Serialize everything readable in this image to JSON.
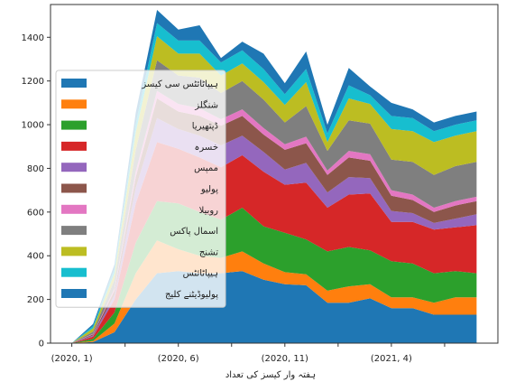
{
  "chart_data": {
    "type": "area",
    "stacked": true,
    "title": "",
    "xlabel": "ہفتہ وار کیسز کی تعداد",
    "ylabel": "",
    "x_tick_labels": [
      "(2020, 1)",
      "(2020, 6)",
      "(2020, 11)",
      "(2021, 4)"
    ],
    "x_tick_positions": [
      1,
      6,
      11,
      16
    ],
    "x": [
      1,
      2,
      3,
      4,
      5,
      6,
      7,
      8,
      9,
      10,
      11,
      12,
      13,
      14,
      15,
      16,
      17,
      18,
      19,
      20
    ],
    "ylim": [
      0,
      1550
    ],
    "y_ticks": [
      0,
      200,
      400,
      600,
      800,
      1000,
      1200,
      1400
    ],
    "y_tick_labels": [
      "0",
      "200",
      "400",
      "600",
      "800",
      "1000",
      "1200",
      "1400"
    ],
    "grid": false,
    "legend_position": "center-left",
    "series": [
      {
        "name": "ہیپاٹائٹس سی کیسز",
        "color": "#1f77b4",
        "values": [
          0,
          5,
          50,
          200,
          320,
          330,
          320,
          320,
          330,
          290,
          270,
          265,
          185,
          185,
          205,
          160,
          160,
          130,
          130,
          130
        ]
      },
      {
        "name": "شنگلز",
        "color": "#ff7f0e",
        "values": [
          0,
          5,
          40,
          120,
          150,
          100,
          80,
          70,
          90,
          75,
          55,
          50,
          55,
          75,
          65,
          50,
          50,
          55,
          80,
          80
        ]
      },
      {
        "name": "ڈپتھیریا",
        "color": "#2ca02c",
        "values": [
          0,
          10,
          50,
          140,
          180,
          210,
          200,
          175,
          200,
          170,
          180,
          160,
          180,
          180,
          155,
          165,
          155,
          135,
          120,
          110
        ]
      },
      {
        "name": "خسرہ",
        "color": "#d62728",
        "values": [
          0,
          10,
          60,
          180,
          270,
          250,
          250,
          240,
          240,
          250,
          220,
          260,
          200,
          240,
          260,
          180,
          190,
          200,
          200,
          220
        ]
      },
      {
        "name": "ممپس",
        "color": "#9467bd",
        "values": [
          0,
          5,
          20,
          70,
          110,
          90,
          100,
          100,
          90,
          90,
          70,
          90,
          70,
          80,
          70,
          50,
          40,
          30,
          40,
          50
        ]
      },
      {
        "name": "پولیو",
        "color": "#8c564b",
        "values": [
          0,
          5,
          20,
          50,
          90,
          80,
          90,
          90,
          90,
          80,
          90,
          90,
          80,
          90,
          80,
          70,
          60,
          50,
          60,
          60
        ]
      },
      {
        "name": "روبیلا",
        "color": "#e377c2",
        "values": [
          0,
          3,
          10,
          25,
          35,
          35,
          35,
          30,
          30,
          30,
          25,
          30,
          20,
          30,
          30,
          25,
          25,
          20,
          20,
          20
        ]
      },
      {
        "name": "اسمال پاکس",
        "color": "#7f7f7f",
        "values": [
          0,
          10,
          40,
          100,
          140,
          130,
          140,
          120,
          130,
          130,
          100,
          140,
          90,
          140,
          140,
          140,
          150,
          150,
          160,
          160
        ]
      },
      {
        "name": "تشنج",
        "color": "#bcbd22",
        "values": [
          0,
          15,
          30,
          80,
          110,
          100,
          110,
          80,
          80,
          80,
          80,
          110,
          40,
          100,
          90,
          140,
          140,
          150,
          140,
          140
        ]
      },
      {
        "name": "ہیپاٹائٹس",
        "color": "#17becf",
        "values": [
          0,
          10,
          20,
          40,
          60,
          60,
          60,
          60,
          60,
          60,
          50,
          60,
          40,
          60,
          40,
          60,
          60,
          50,
          50,
          50
        ]
      },
      {
        "name": "پولیوڈیٹنے کلیج",
        "color": "#1f77b4",
        "values": [
          0,
          10,
          20,
          50,
          60,
          50,
          70,
          20,
          40,
          70,
          50,
          80,
          40,
          80,
          40,
          60,
          40,
          40,
          40,
          40
        ]
      }
    ]
  }
}
